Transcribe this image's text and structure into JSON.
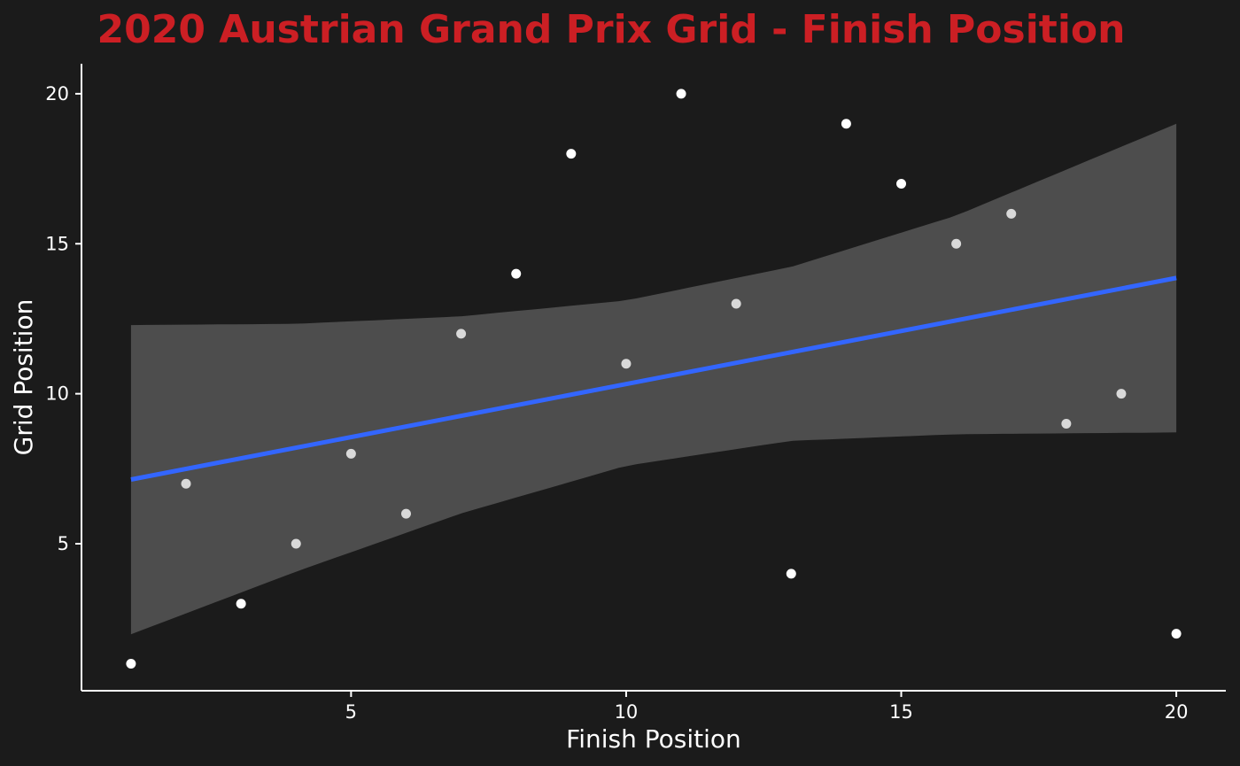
{
  "chart_data": {
    "type": "scatter",
    "title": "2020 Austrian Grand Prix Grid - Finish Position",
    "xlabel": "Finish Position",
    "ylabel": "Grid Position",
    "xlim": [
      0.1,
      20.9
    ],
    "ylim": [
      0.1,
      21.0
    ],
    "xticks": [
      5,
      10,
      15,
      20
    ],
    "yticks": [
      5,
      10,
      15,
      20
    ],
    "grid": false,
    "points": [
      {
        "x": 1,
        "y": 1
      },
      {
        "x": 2,
        "y": 7
      },
      {
        "x": 3,
        "y": 3
      },
      {
        "x": 4,
        "y": 5
      },
      {
        "x": 5,
        "y": 8
      },
      {
        "x": 6,
        "y": 6
      },
      {
        "x": 7,
        "y": 12
      },
      {
        "x": 8,
        "y": 14
      },
      {
        "x": 9,
        "y": 18
      },
      {
        "x": 10,
        "y": 11
      },
      {
        "x": 11,
        "y": 20
      },
      {
        "x": 12,
        "y": 13
      },
      {
        "x": 13,
        "y": 4
      },
      {
        "x": 14,
        "y": 19
      },
      {
        "x": 15,
        "y": 17
      },
      {
        "x": 16,
        "y": 15
      },
      {
        "x": 17,
        "y": 16
      },
      {
        "x": 18,
        "y": 9
      },
      {
        "x": 19,
        "y": 10
      },
      {
        "x": 20,
        "y": 2
      }
    ],
    "trend": {
      "method": "linear",
      "x": [
        1,
        20
      ],
      "y": [
        7.14,
        13.86
      ],
      "ci_band": {
        "x": [
          1,
          4,
          7,
          10,
          13,
          16,
          20
        ],
        "upper": [
          12.29,
          12.33,
          12.58,
          13.11,
          14.23,
          15.94,
          19.0
        ],
        "lower": [
          1.98,
          4.07,
          6.01,
          7.6,
          8.43,
          8.65,
          8.71
        ]
      }
    },
    "colors": {
      "background": "#1b1b1b",
      "title": "#cc1f24",
      "text": "#ffffff",
      "axis": "#ffffff",
      "point_outside_band": "#ffffff",
      "point_inside_band": "#d9d9d9",
      "trend_line": "#3366ff",
      "ci_band": "#4d4d4d"
    }
  }
}
